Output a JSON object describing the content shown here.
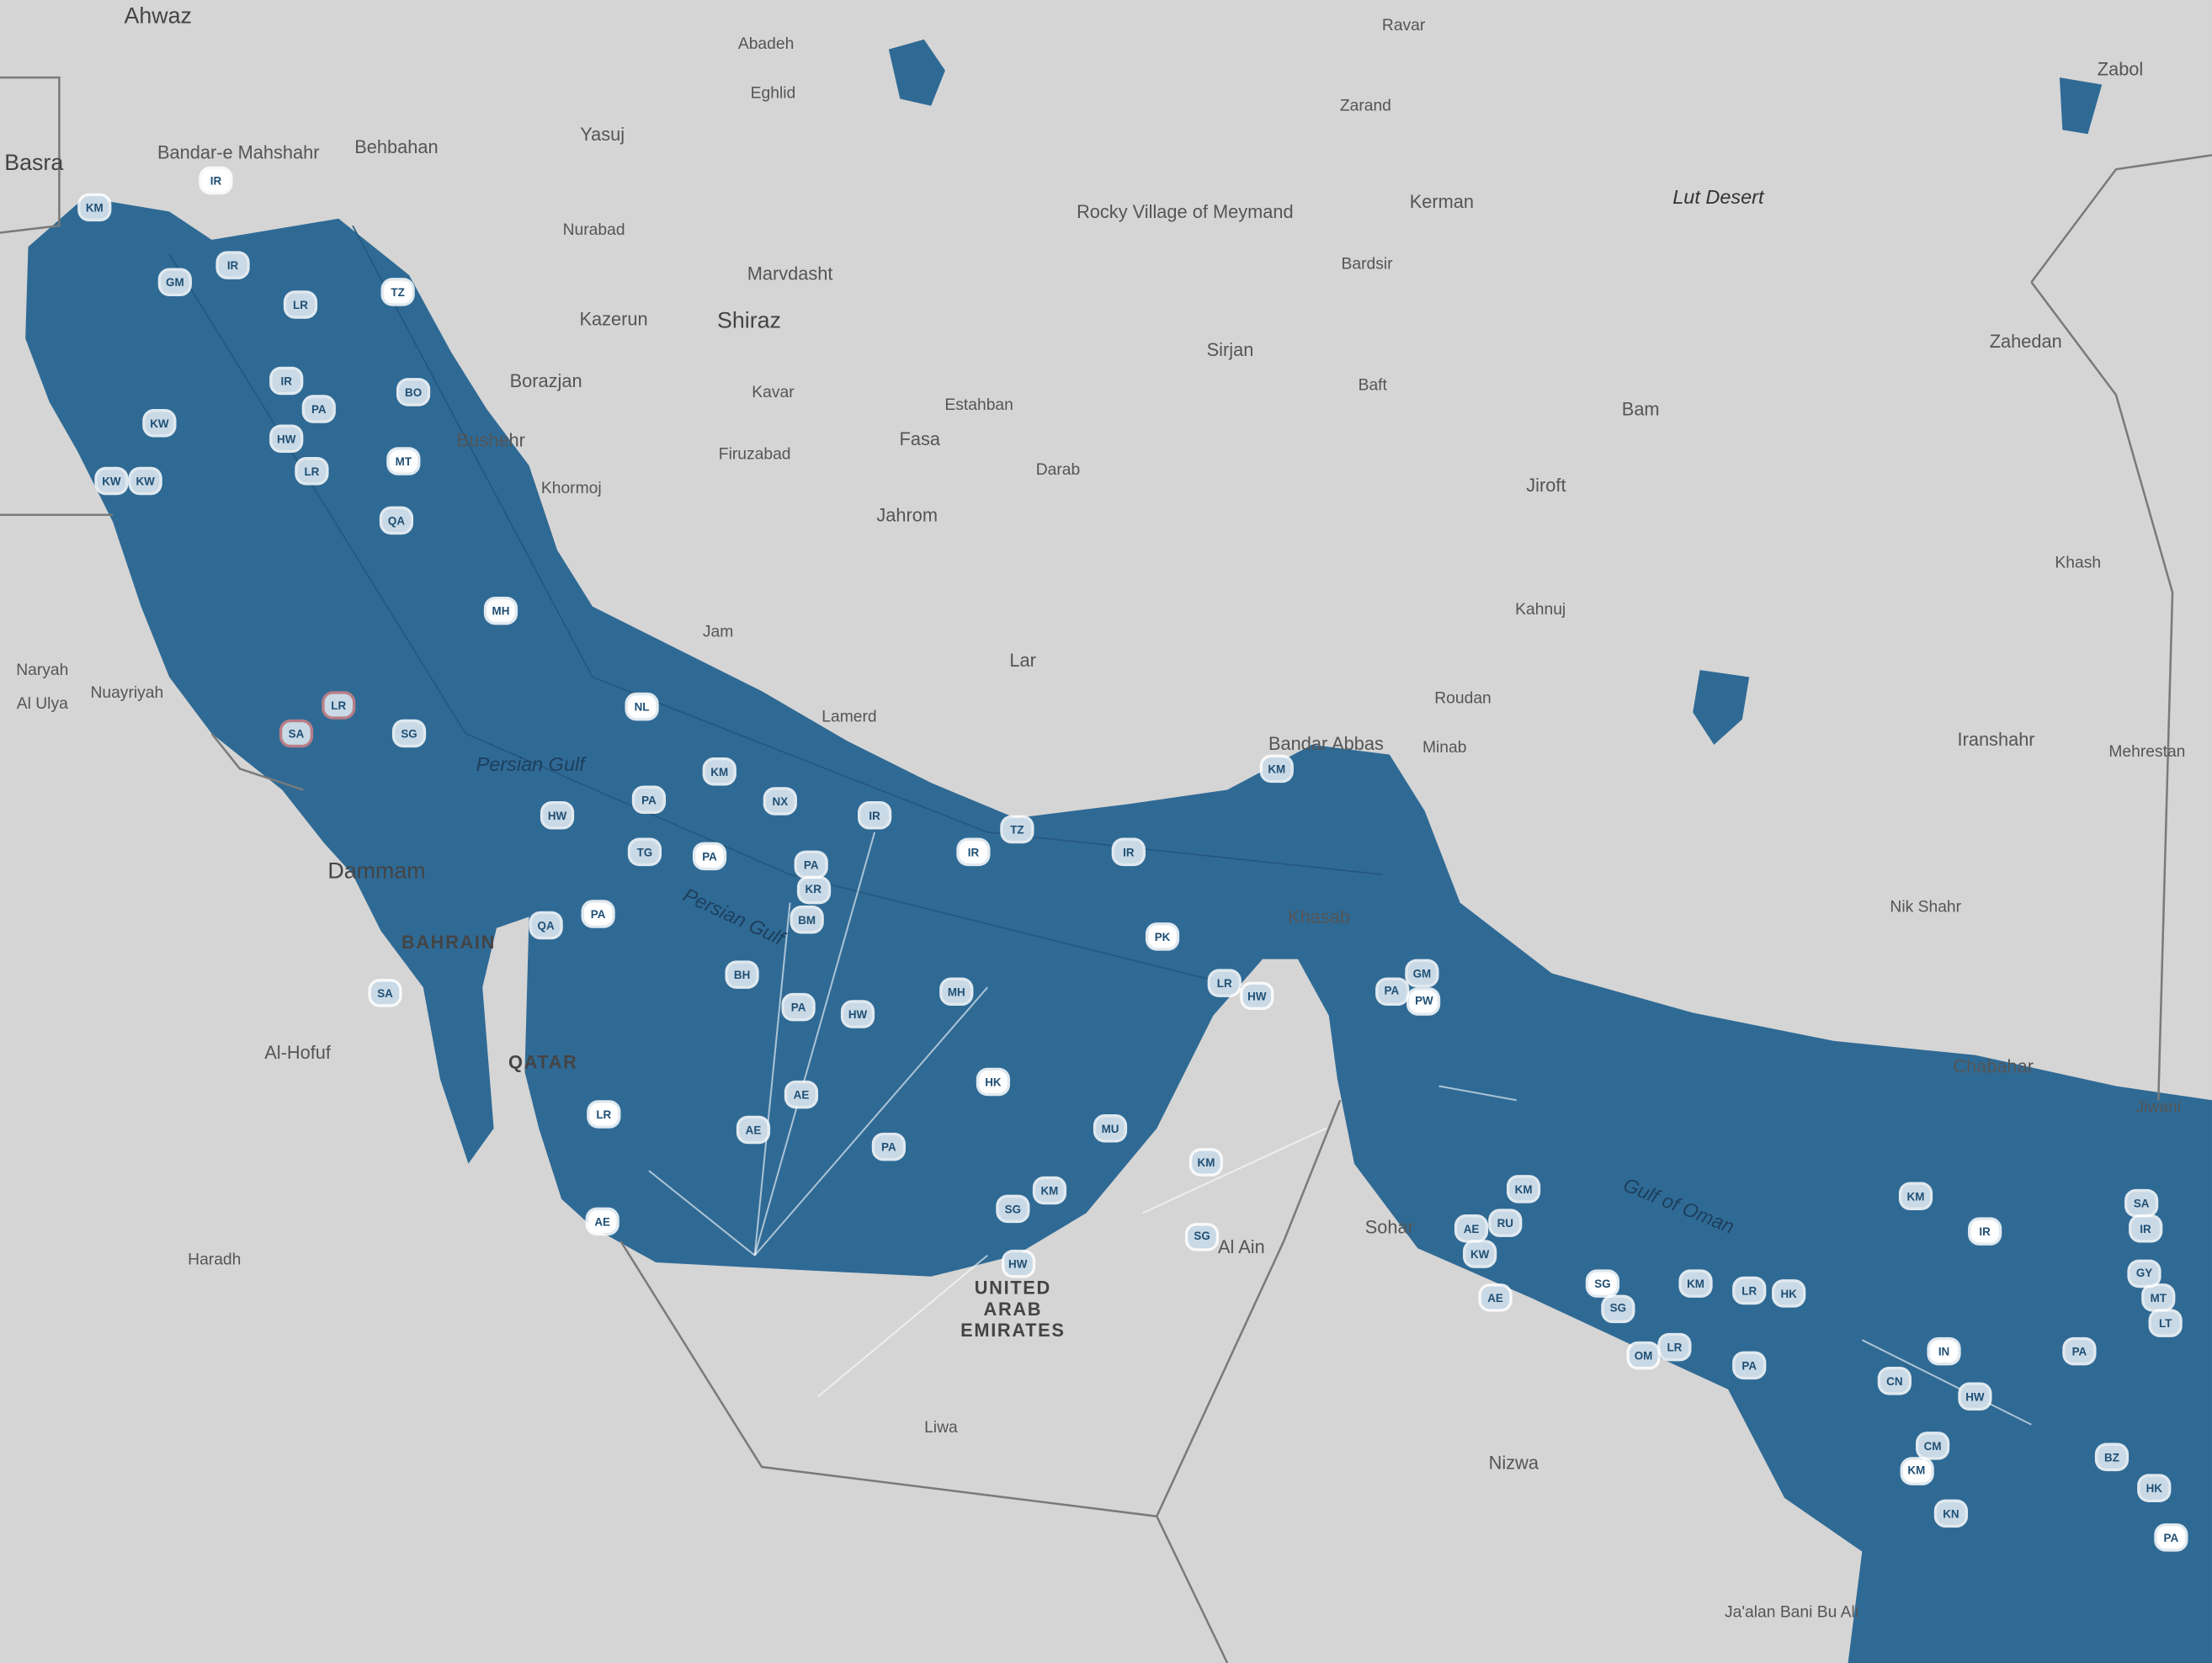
{
  "map": {
    "colors": {
      "land": "#d5d5d5",
      "water": "#2f6a95",
      "vessel_fill": "#c9d9e6",
      "vessel_text": "#1f4f74",
      "border": "#777777"
    },
    "places": [
      {
        "name": "Ahwaz",
        "cls": "big"
      },
      {
        "name": "Abadeh",
        "cls": "small"
      },
      {
        "name": "Ravar",
        "cls": "small"
      },
      {
        "name": "Zabol",
        "cls": ""
      },
      {
        "name": "Eghlid",
        "cls": "small"
      },
      {
        "name": "Zarand",
        "cls": "small"
      },
      {
        "name": "Bandar-e Mahshahr",
        "cls": ""
      },
      {
        "name": "Behbahan",
        "cls": ""
      },
      {
        "name": "Yasuj",
        "cls": ""
      },
      {
        "name": "Rocky Village of Meymand",
        "cls": ""
      },
      {
        "name": "Kerman",
        "cls": ""
      },
      {
        "name": "Lut Desert",
        "cls": "italic"
      },
      {
        "name": "Nurabad",
        "cls": "small"
      },
      {
        "name": "Marvdasht",
        "cls": ""
      },
      {
        "name": "Bardsir",
        "cls": "small"
      },
      {
        "name": "Kazerun",
        "cls": ""
      },
      {
        "name": "Shiraz",
        "cls": "big"
      },
      {
        "name": "Sirjan",
        "cls": ""
      },
      {
        "name": "Zahedan",
        "cls": ""
      },
      {
        "name": "Borazjan",
        "cls": ""
      },
      {
        "name": "Baft",
        "cls": "small"
      },
      {
        "name": "Kavar",
        "cls": "small"
      },
      {
        "name": "Estahban",
        "cls": "small"
      },
      {
        "name": "Bam",
        "cls": ""
      },
      {
        "name": "Bushehr",
        "cls": ""
      },
      {
        "name": "Fasa",
        "cls": ""
      },
      {
        "name": "Firuzabad",
        "cls": "small"
      },
      {
        "name": "Darab",
        "cls": "small"
      },
      {
        "name": "Khormoj",
        "cls": "small"
      },
      {
        "name": "Jiroft",
        "cls": ""
      },
      {
        "name": "Jahrom",
        "cls": ""
      },
      {
        "name": "Khash",
        "cls": "small"
      },
      {
        "name": "Kahnuj",
        "cls": "small"
      },
      {
        "name": "Jam",
        "cls": "small"
      },
      {
        "name": "Lar",
        "cls": ""
      },
      {
        "name": "Iranshahr",
        "cls": ""
      },
      {
        "name": "Roudan",
        "cls": "small"
      },
      {
        "name": "Lamerd",
        "cls": "small"
      },
      {
        "name": "Minab",
        "cls": "small"
      },
      {
        "name": "Mehrestan",
        "cls": "small"
      },
      {
        "name": "Bandar Abbas",
        "cls": ""
      },
      {
        "name": "Persian Gulf",
        "cls": "sea"
      },
      {
        "name": "Nuayriyah",
        "cls": "small"
      },
      {
        "name": "Dammam",
        "cls": "big"
      },
      {
        "name": "BAHRAIN",
        "cls": "country"
      },
      {
        "name": "Nik Shahr",
        "cls": "small"
      },
      {
        "name": "Khasab",
        "cls": ""
      },
      {
        "name": "Al-Hofuf",
        "cls": ""
      },
      {
        "name": "QATAR",
        "cls": "country"
      },
      {
        "name": "Gulf of Oman",
        "cls": "sea"
      },
      {
        "name": "Chabahar",
        "cls": ""
      },
      {
        "name": "Jiwani",
        "cls": "small"
      },
      {
        "name": "Sohar",
        "cls": ""
      },
      {
        "name": "Al Ain",
        "cls": ""
      },
      {
        "name": "Haradh",
        "cls": "small"
      },
      {
        "name": "UNITED ARAB EMIRATES",
        "cls": "country"
      },
      {
        "name": "Liwa",
        "cls": "small"
      },
      {
        "name": "Nizwa",
        "cls": ""
      },
      {
        "name": "Ja'alan Bani Bu Ali",
        "cls": "small"
      },
      {
        "name": "Persian Gulf",
        "cls": "sea"
      },
      {
        "name": "Basra",
        "cls": "big"
      },
      {
        "name": "Naryah",
        "cls": "small"
      },
      {
        "name": "Al Ulya",
        "cls": "small"
      }
    ],
    "vessel_flags": [
      "IR",
      "KM",
      "IR",
      "GM",
      "LR",
      "TZ",
      "KW",
      "KW",
      "BO",
      "PA",
      "MT",
      "IR",
      "HW",
      "LR",
      "QA",
      "MH",
      "KW",
      "SA",
      "LR",
      "SG",
      "NL",
      "PA",
      "KM",
      "NX",
      "IR",
      "PA",
      "HW",
      "PA",
      "KR",
      "BM",
      "PA",
      "QA",
      "BH",
      "PA",
      "TG",
      "LR",
      "HW",
      "MH",
      "AE",
      "AE",
      "AE",
      "HW",
      "KM",
      "SG",
      "PA",
      "HK",
      "MU",
      "KM",
      "SG",
      "TZ",
      "IR",
      "IR",
      "KM",
      "GM",
      "PA",
      "PW",
      "KM",
      "AE",
      "RU",
      "KW",
      "SG",
      "KM",
      "LR",
      "HK",
      "PA",
      "IN",
      "CN",
      "HW",
      "KM",
      "CM",
      "PK",
      "LR",
      "HW",
      "MT",
      "KN",
      "IR",
      "SA",
      "OM",
      "LR",
      "PA",
      "KM",
      "GY",
      "LT",
      "HK",
      "BZ",
      "PA",
      "IR",
      "SG",
      "AE",
      "SA"
    ]
  }
}
